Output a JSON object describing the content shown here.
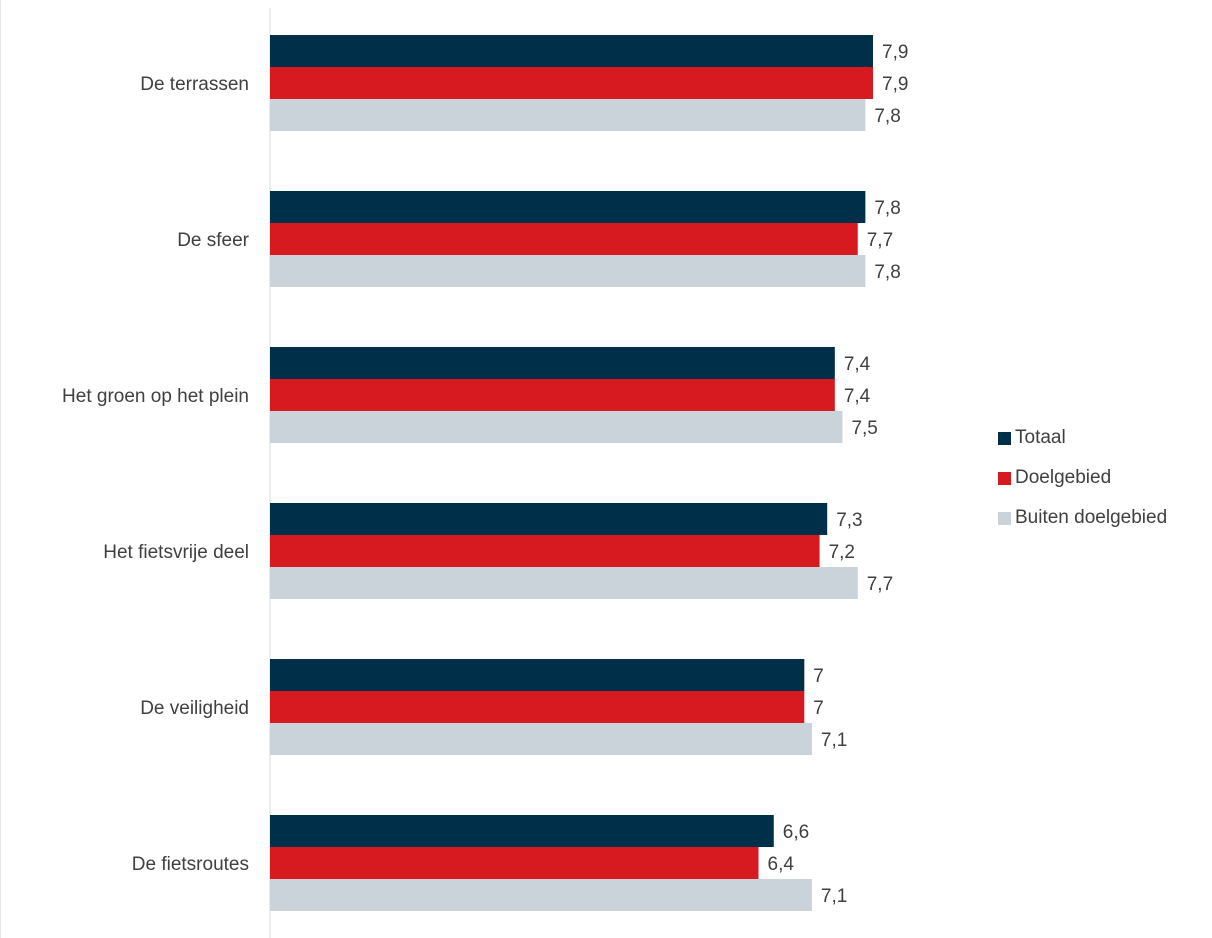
{
  "chart_data": {
    "type": "bar",
    "orientation": "horizontal",
    "categories": [
      "De terrassen",
      "De sfeer",
      "Het groen op het plein",
      "Het fietsvrije deel",
      "De veiligheid",
      "De fietsroutes"
    ],
    "series": [
      {
        "name": "Totaal",
        "color": "#003049",
        "values": [
          7.9,
          7.8,
          7.4,
          7.3,
          7,
          6.6
        ],
        "labels": [
          "7,9",
          "7,8",
          "7,4",
          "7,3",
          "7",
          "6,6"
        ]
      },
      {
        "name": "Doelgebied",
        "color": "#d71920",
        "values": [
          7.9,
          7.7,
          7.4,
          7.2,
          7,
          6.4
        ],
        "labels": [
          "7,9",
          "7,7",
          "7,4",
          "7,2",
          "7",
          "6,4"
        ]
      },
      {
        "name": "Buiten doelgebied",
        "color": "#c9d3d9",
        "values": [
          7.8,
          7.8,
          7.5,
          7.7,
          7.1,
          7.1
        ],
        "labels": [
          "7,8",
          "7,8",
          "7,5",
          "7,7",
          "7,1",
          "7,1"
        ]
      }
    ],
    "xlim": [
      0,
      7.9
    ],
    "grid": false,
    "legend_position": "right"
  }
}
